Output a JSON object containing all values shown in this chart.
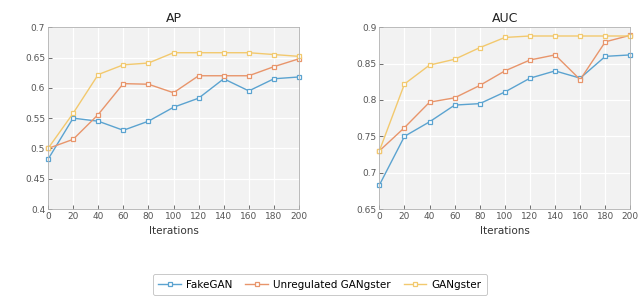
{
  "iterations": [
    0,
    20,
    40,
    60,
    80,
    100,
    120,
    140,
    160,
    180,
    200
  ],
  "ap": {
    "FakeGAN": [
      0.482,
      0.55,
      0.545,
      0.53,
      0.545,
      0.568,
      0.583,
      0.615,
      0.595,
      0.615,
      0.618
    ],
    "Unregulated GANgster": [
      0.5,
      0.515,
      0.556,
      0.607,
      0.606,
      0.592,
      0.62,
      0.62,
      0.62,
      0.635,
      0.648
    ],
    "GANgster": [
      0.5,
      0.558,
      0.622,
      0.638,
      0.641,
      0.658,
      0.658,
      0.658,
      0.658,
      0.655,
      0.652
    ]
  },
  "auc": {
    "FakeGAN": [
      0.683,
      0.75,
      0.77,
      0.793,
      0.795,
      0.811,
      0.83,
      0.84,
      0.83,
      0.86,
      0.862
    ],
    "Unregulated GANgster": [
      0.73,
      0.762,
      0.797,
      0.803,
      0.82,
      0.84,
      0.855,
      0.862,
      0.828,
      0.88,
      0.889
    ],
    "GANgster": [
      0.73,
      0.822,
      0.848,
      0.856,
      0.872,
      0.886,
      0.888,
      0.888,
      0.888,
      0.888,
      0.888
    ]
  },
  "colors": {
    "FakeGAN": "#5ba3d0",
    "Unregulated GANgster": "#e8956b",
    "GANgster": "#f2c96e"
  },
  "ap_ylim": [
    0.4,
    0.7
  ],
  "auc_ylim": [
    0.65,
    0.9
  ],
  "ap_yticks": [
    0.4,
    0.45,
    0.5,
    0.55,
    0.6,
    0.65,
    0.7
  ],
  "auc_yticks": [
    0.65,
    0.7,
    0.75,
    0.8,
    0.85,
    0.9
  ],
  "xticks": [
    0,
    20,
    40,
    60,
    80,
    100,
    120,
    140,
    160,
    180,
    200
  ],
  "xlabel": "Iterations",
  "title_ap": "AP",
  "title_auc": "AUC",
  "legend_labels": [
    "FakeGAN",
    "Unregulated GANgster",
    "GANgster"
  ],
  "ax_bg": "#f2f2f2",
  "grid_color": "#ffffff",
  "spine_color": "#b0b0b0",
  "tick_color": "#555555",
  "fig_bg": "#ffffff"
}
